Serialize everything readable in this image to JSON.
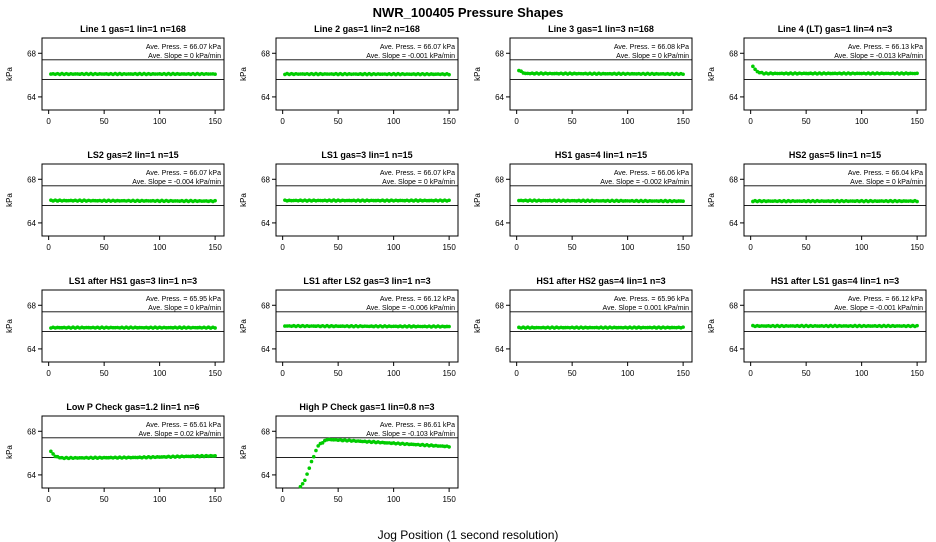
{
  "page": {
    "title": "NWR_100405  Pressure Shapes",
    "x_axis_title": "Jog Position (1 second resolution)"
  },
  "chart_data": {
    "type": "scatter",
    "layout": "small-multiples-grid",
    "grid": [
      4,
      4
    ],
    "xlabel": "Jog Position (1 second resolution)",
    "ylabel": "kPa",
    "xlim": [
      -6,
      158
    ],
    "ylim": [
      62.8,
      69.4
    ],
    "xticks": [
      0,
      50,
      100,
      150
    ],
    "yticks": [
      64,
      68
    ],
    "ref_lines": [
      65.6,
      67.4
    ],
    "point_color": "#00cc00",
    "axis_color": "#000000",
    "panels": [
      {
        "title": "Line 1 gas=1 lin=1 n=168",
        "press_label": "Ave. Press. = 66.07 kPa",
        "slope_label": "Ave. Slope =  0 kPa/min",
        "ave_press_kpa": 66.07,
        "ave_slope_kpa_per_min": 0,
        "profile": [
          [
            2,
            66.1
          ],
          [
            150,
            66.1
          ]
        ]
      },
      {
        "title": "Line 2 gas=1 lin=2 n=168",
        "press_label": "Ave. Press. = 66.07 kPa",
        "slope_label": "Ave. Slope = -0.001 kPa/min",
        "ave_press_kpa": 66.07,
        "ave_slope_kpa_per_min": -0.001,
        "profile": [
          [
            2,
            66.1
          ],
          [
            150,
            66.08
          ]
        ]
      },
      {
        "title": "Line 3 gas=1 lin=3 n=168",
        "press_label": "Ave. Press. = 66.08 kPa",
        "slope_label": "Ave. Slope =  0 kPa/min",
        "ave_press_kpa": 66.08,
        "ave_slope_kpa_per_min": 0,
        "profile": [
          [
            2,
            66.45
          ],
          [
            7,
            66.15
          ],
          [
            150,
            66.1
          ]
        ]
      },
      {
        "title": "Line 4 (LT) gas=1 lin=4 n=3",
        "press_label": "Ave. Press. = 66.13 kPa",
        "slope_label": "Ave. Slope = -0.013 kPa/min",
        "ave_press_kpa": 66.13,
        "ave_slope_kpa_per_min": -0.013,
        "profile": [
          [
            2,
            66.8
          ],
          [
            6,
            66.3
          ],
          [
            12,
            66.15
          ],
          [
            150,
            66.15
          ]
        ]
      },
      {
        "title": "LS2 gas=2 lin=1 n=15",
        "press_label": "Ave. Press. = 66.07 kPa",
        "slope_label": "Ave. Slope = -0.004 kPa/min",
        "ave_press_kpa": 66.07,
        "ave_slope_kpa_per_min": -0.004,
        "profile": [
          [
            2,
            66.05
          ],
          [
            150,
            66.0
          ]
        ]
      },
      {
        "title": "LS1 gas=3 lin=1 n=15",
        "press_label": "Ave. Press. = 66.07 kPa",
        "slope_label": "Ave. Slope =  0 kPa/min",
        "ave_press_kpa": 66.07,
        "ave_slope_kpa_per_min": 0,
        "profile": [
          [
            2,
            66.05
          ],
          [
            150,
            66.05
          ]
        ]
      },
      {
        "title": "HS1 gas=4 lin=1 n=15",
        "press_label": "Ave. Press. = 66.06 kPa",
        "slope_label": "Ave. Slope = -0.002 kPa/min",
        "ave_press_kpa": 66.06,
        "ave_slope_kpa_per_min": -0.002,
        "profile": [
          [
            2,
            66.05
          ],
          [
            150,
            66.0
          ]
        ]
      },
      {
        "title": "HS2 gas=5 lin=1 n=15",
        "press_label": "Ave. Press. = 66.04 kPa",
        "slope_label": "Ave. Slope =  0 kPa/min",
        "ave_press_kpa": 66.04,
        "ave_slope_kpa_per_min": 0,
        "profile": [
          [
            2,
            66.0
          ],
          [
            150,
            66.0
          ]
        ]
      },
      {
        "title": "LS1 after HS1 gas=3 lin=1 n=3",
        "press_label": "Ave. Press. = 65.95 kPa",
        "slope_label": "Ave. Slope =  0 kPa/min",
        "ave_press_kpa": 65.95,
        "ave_slope_kpa_per_min": 0,
        "profile": [
          [
            2,
            65.95
          ],
          [
            150,
            65.95
          ]
        ]
      },
      {
        "title": "LS1 after LS2 gas=3 lin=1 n=3",
        "press_label": "Ave. Press. = 66.12 kPa",
        "slope_label": "Ave. Slope = -0.006 kPa/min",
        "ave_press_kpa": 66.12,
        "ave_slope_kpa_per_min": -0.006,
        "profile": [
          [
            2,
            66.1
          ],
          [
            150,
            66.05
          ]
        ]
      },
      {
        "title": "HS1 after HS2 gas=4 lin=1 n=3",
        "press_label": "Ave. Press. = 65.96 kPa",
        "slope_label": "Ave. Slope = 0.001 kPa/min",
        "ave_press_kpa": 65.96,
        "ave_slope_kpa_per_min": 0.001,
        "profile": [
          [
            2,
            65.95
          ],
          [
            150,
            65.96
          ]
        ]
      },
      {
        "title": "HS1 after LS1 gas=4 lin=1 n=3",
        "press_label": "Ave. Press. = 66.12 kPa",
        "slope_label": "Ave. Slope = -0.001 kPa/min",
        "ave_press_kpa": 66.12,
        "ave_slope_kpa_per_min": -0.001,
        "profile": [
          [
            2,
            66.1
          ],
          [
            150,
            66.1
          ]
        ]
      },
      {
        "title": "Low P Check gas=1.2 lin=1 n=6",
        "press_label": "Ave. Press. = 65.61 kPa",
        "slope_label": "Ave. Slope = 0.02 kPa/min",
        "ave_press_kpa": 65.61,
        "ave_slope_kpa_per_min": 0.02,
        "profile": [
          [
            2,
            66.15
          ],
          [
            6,
            65.7
          ],
          [
            12,
            65.55
          ],
          [
            80,
            65.6
          ],
          [
            150,
            65.75
          ]
        ]
      },
      {
        "title": "High P Check gas=1 lin=0.8 n=3",
        "press_label": "Ave. Press. = 86.61 kPa",
        "slope_label": "Ave. Slope = -0.103 kPa/min",
        "ave_press_kpa": 86.61,
        "ave_slope_kpa_per_min": -0.103,
        "profile": [
          [
            16,
            62.9
          ],
          [
            20,
            63.5
          ],
          [
            26,
            65.2
          ],
          [
            32,
            66.7
          ],
          [
            40,
            67.25
          ],
          [
            60,
            67.15
          ],
          [
            100,
            66.9
          ],
          [
            150,
            66.6
          ]
        ]
      }
    ]
  }
}
